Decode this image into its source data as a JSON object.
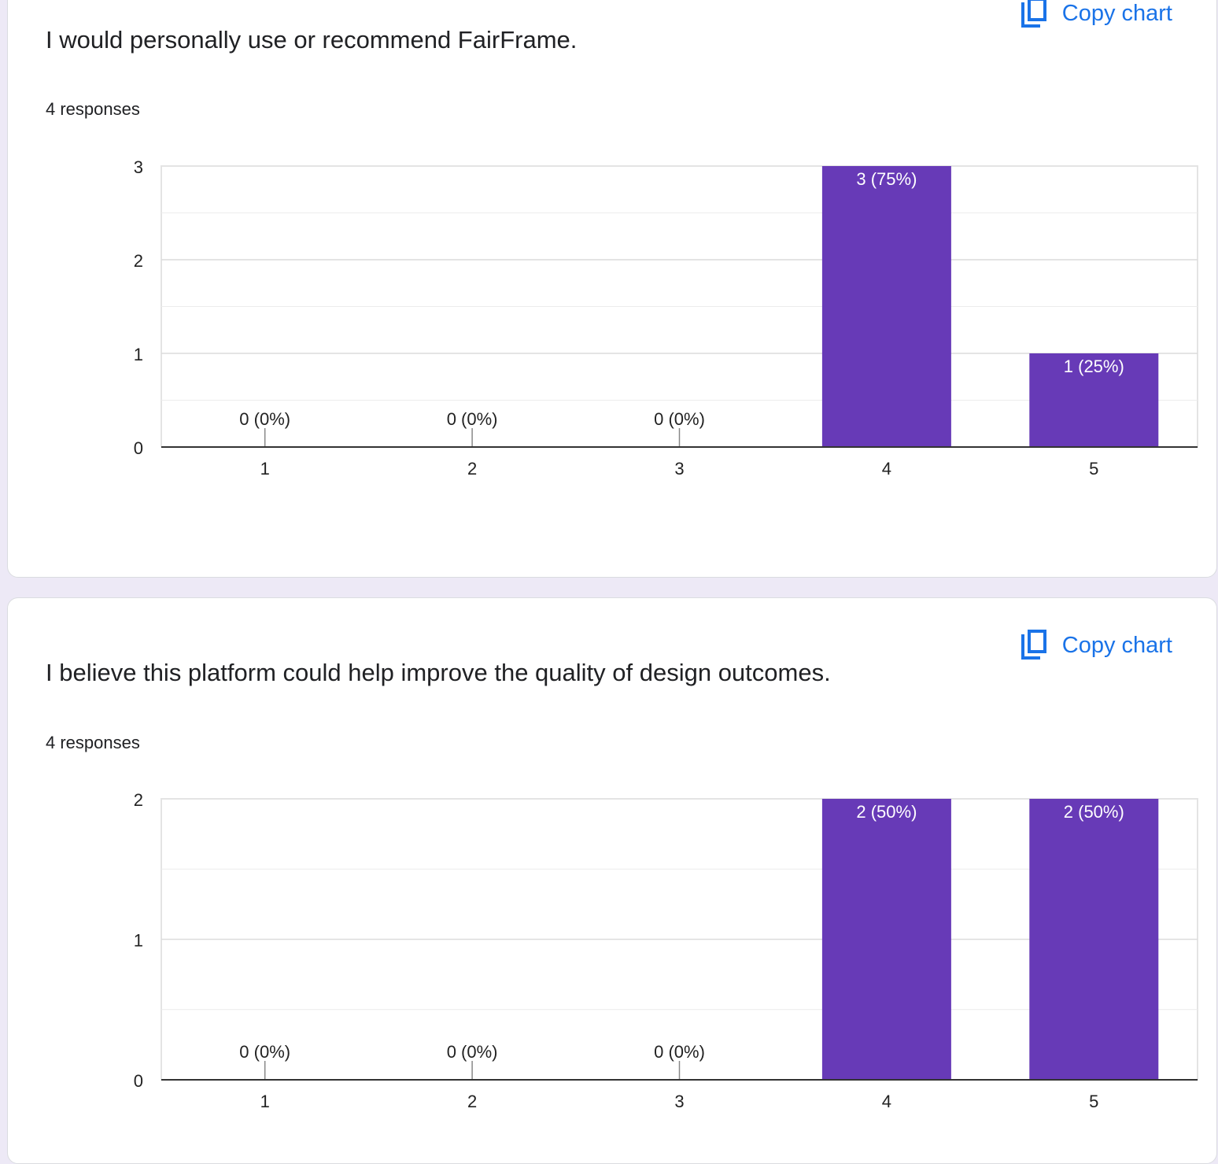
{
  "accent_color": "#1a73e8",
  "bar_color": "#673ab7",
  "copy_chart_label": "Copy chart",
  "copy_icon": "copy-content-icon",
  "cards": [
    {
      "question": "I would personally use or recommend FairFrame.",
      "responses": "4 responses"
    },
    {
      "question": "I believe this platform could help improve the quality of design outcomes.",
      "responses": "4 responses"
    }
  ],
  "chart_data": [
    {
      "type": "bar",
      "categories": [
        "1",
        "2",
        "3",
        "4",
        "5"
      ],
      "values": [
        0,
        0,
        0,
        3,
        1
      ],
      "data_labels": [
        "0 (0%)",
        "0 (0%)",
        "0 (0%)",
        "3 (75%)",
        "1 (25%)"
      ],
      "ylim": [
        0,
        3
      ],
      "yticks": [
        "0",
        "1",
        "2",
        "3"
      ],
      "grid": true,
      "xlabel": "",
      "ylabel": ""
    },
    {
      "type": "bar",
      "categories": [
        "1",
        "2",
        "3",
        "4",
        "5"
      ],
      "values": [
        0,
        0,
        0,
        2,
        2
      ],
      "data_labels": [
        "0 (0%)",
        "0 (0%)",
        "0 (0%)",
        "2 (50%)",
        "2 (50%)"
      ],
      "ylim": [
        0,
        2
      ],
      "yticks": [
        "0",
        "1",
        "2"
      ],
      "grid": true,
      "xlabel": "",
      "ylabel": ""
    }
  ]
}
